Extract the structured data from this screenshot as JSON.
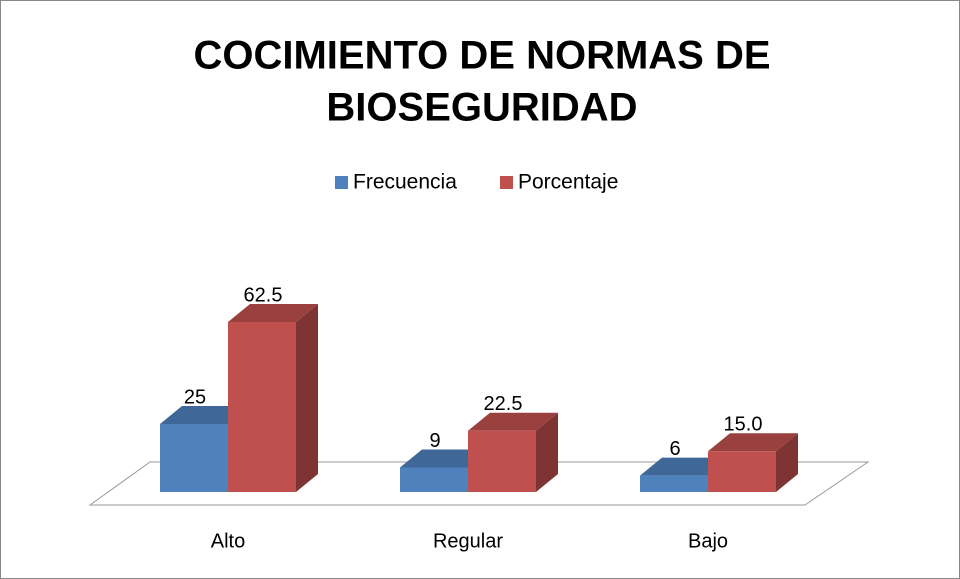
{
  "chart_data": {
    "type": "bar3d",
    "title": [
      "COCIMIENTO DE NORMAS DE",
      "BIOSEGURIDAD"
    ],
    "categories": [
      "Alto",
      "Regular",
      "Bajo"
    ],
    "series": [
      {
        "name": "Frecuencia",
        "color": "#4f81bd",
        "values": [
          25,
          9,
          6
        ]
      },
      {
        "name": "Porcentaje",
        "color": "#c0504d",
        "values": [
          62.5,
          22.5,
          15.0
        ],
        "value_labels": [
          "62.5",
          "22.5",
          "15.0"
        ]
      }
    ],
    "legend": "top"
  }
}
